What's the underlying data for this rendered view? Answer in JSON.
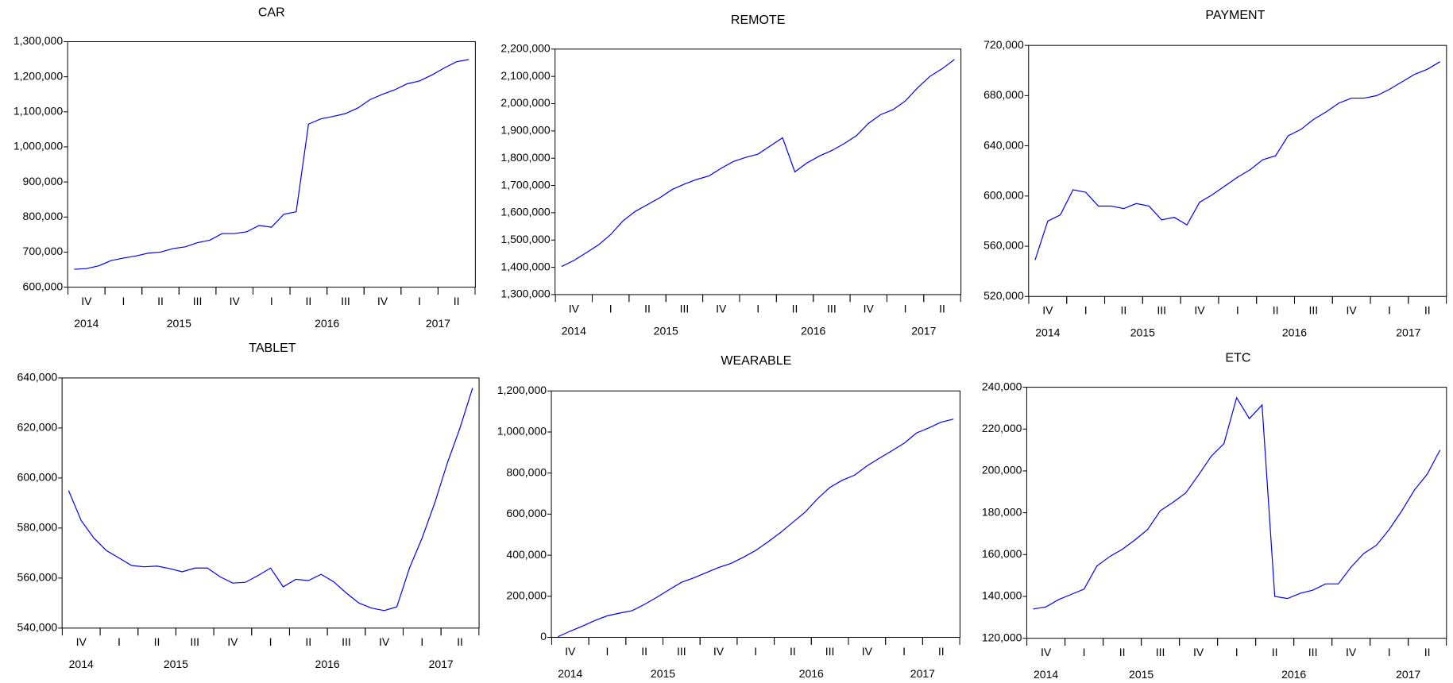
{
  "chart_data": [
    {
      "type": "line",
      "title": "CAR",
      "color": "#0000ff",
      "categories": [
        null,
        "IV",
        null,
        null,
        "I",
        null,
        null,
        "II",
        null,
        null,
        "III",
        null,
        null,
        "IV",
        null,
        null,
        "I",
        null,
        null,
        "II",
        null,
        null,
        "III",
        null,
        null,
        "IV",
        null,
        null,
        "I",
        null,
        null,
        "II",
        null
      ],
      "year_ticks": [
        {
          "value": 1,
          "label": "2014"
        },
        {
          "value": 8.5,
          "label": "2015"
        },
        {
          "value": 20.5,
          "label": "2016"
        },
        {
          "value": 29.5,
          "label": "2017"
        }
      ],
      "values": [
        651000,
        653000,
        661000,
        676000,
        683000,
        689000,
        697000,
        700000,
        710000,
        715000,
        727000,
        734000,
        753000,
        753000,
        758000,
        776000,
        771000,
        808000,
        815000,
        1065000,
        1080000,
        1087000,
        1095000,
        1111000,
        1135000,
        1150000,
        1163000,
        1180000,
        1188000,
        1205000,
        1225000,
        1243000,
        1249000
      ],
      "ylim": [
        600000,
        1300000
      ],
      "yticks": [
        {
          "value": 600000,
          "label": "600,000"
        },
        {
          "value": 700000,
          "label": "700,000"
        },
        {
          "value": 800000,
          "label": "800,000"
        },
        {
          "value": 900000,
          "label": "900,000"
        },
        {
          "value": 1000000,
          "label": "1,000,000"
        },
        {
          "value": 1100000,
          "label": "1,100,000"
        },
        {
          "value": 1200000,
          "label": "1,200,000"
        },
        {
          "value": 1300000,
          "label": "1,300,000"
        }
      ],
      "grid": false
    },
    {
      "type": "line",
      "title": "REMOTE",
      "color": "#0000ff",
      "categories": [
        null,
        "IV",
        null,
        null,
        "I",
        null,
        null,
        "II",
        null,
        null,
        "III",
        null,
        null,
        "IV",
        null,
        null,
        "I",
        null,
        null,
        "II",
        null,
        null,
        "III",
        null,
        null,
        "IV",
        null,
        null,
        "I",
        null,
        null,
        "II",
        null
      ],
      "year_ticks": [
        {
          "value": 1,
          "label": "2014"
        },
        {
          "value": 8.5,
          "label": "2015"
        },
        {
          "value": 20.5,
          "label": "2016"
        },
        {
          "value": 29.5,
          "label": "2017"
        }
      ],
      "values": [
        1403000,
        1425000,
        1453000,
        1482000,
        1520000,
        1570000,
        1605000,
        1630000,
        1655000,
        1685000,
        1705000,
        1722000,
        1735000,
        1763000,
        1788000,
        1803000,
        1815000,
        1845000,
        1875000,
        1750000,
        1783000,
        1808000,
        1828000,
        1853000,
        1882000,
        1928000,
        1960000,
        1978000,
        2010000,
        2058000,
        2100000,
        2128000,
        2162000
      ],
      "ylim": [
        1300000,
        2200000
      ],
      "yticks": [
        {
          "value": 1300000,
          "label": "1,300,000"
        },
        {
          "value": 1400000,
          "label": "1,400,000"
        },
        {
          "value": 1500000,
          "label": "1,500,000"
        },
        {
          "value": 1600000,
          "label": "1,600,000"
        },
        {
          "value": 1700000,
          "label": "1,700,000"
        },
        {
          "value": 1800000,
          "label": "1,800,000"
        },
        {
          "value": 1900000,
          "label": "1,900,000"
        },
        {
          "value": 2000000,
          "label": "2,000,000"
        },
        {
          "value": 2100000,
          "label": "2,100,000"
        },
        {
          "value": 2200000,
          "label": "2,200,000"
        }
      ],
      "grid": false
    },
    {
      "type": "line",
      "title": "PAYMENT",
      "color": "#0000ff",
      "categories": [
        null,
        "IV",
        null,
        null,
        "I",
        null,
        null,
        "II",
        null,
        null,
        "III",
        null,
        null,
        "IV",
        null,
        null,
        "I",
        null,
        null,
        "II",
        null,
        null,
        "III",
        null,
        null,
        "IV",
        null,
        null,
        "I",
        null,
        null,
        "II",
        null
      ],
      "year_ticks": [
        {
          "value": 1,
          "label": "2014"
        },
        {
          "value": 8.5,
          "label": "2015"
        },
        {
          "value": 20.5,
          "label": "2016"
        },
        {
          "value": 29.5,
          "label": "2017"
        }
      ],
      "values": [
        549000,
        580000,
        585000,
        605000,
        603000,
        592000,
        592000,
        590000,
        594000,
        592000,
        581000,
        583000,
        577000,
        595000,
        601000,
        608000,
        615000,
        621000,
        629000,
        632000,
        648000,
        653000,
        661000,
        667000,
        674000,
        678000,
        678000,
        680000,
        685000,
        691000,
        697000,
        701000,
        707000
      ],
      "ylim": [
        520000,
        720000
      ],
      "yticks": [
        {
          "value": 520000,
          "label": "520,000"
        },
        {
          "value": 560000,
          "label": "560,000"
        },
        {
          "value": 600000,
          "label": "600,000"
        },
        {
          "value": 640000,
          "label": "640,000"
        },
        {
          "value": 680000,
          "label": "680,000"
        },
        {
          "value": 720000,
          "label": "720,000"
        }
      ],
      "grid": false
    },
    {
      "type": "line",
      "title": "TABLET",
      "color": "#0000ff",
      "categories": [
        null,
        "IV",
        null,
        null,
        "I",
        null,
        null,
        "II",
        null,
        null,
        "III",
        null,
        null,
        "IV",
        null,
        null,
        "I",
        null,
        null,
        "II",
        null,
        null,
        "III",
        null,
        null,
        "IV",
        null,
        null,
        "I",
        null,
        null,
        "II",
        null
      ],
      "year_ticks": [
        {
          "value": 1,
          "label": "2014"
        },
        {
          "value": 8.5,
          "label": "2015"
        },
        {
          "value": 20.5,
          "label": "2016"
        },
        {
          "value": 29.5,
          "label": "2017"
        }
      ],
      "values": [
        595000,
        583000,
        576000,
        571000,
        568000,
        565000,
        564500,
        564800,
        563800,
        562500,
        564000,
        564000,
        560500,
        558000,
        558300,
        561000,
        564000,
        556500,
        559500,
        559000,
        561500,
        558500,
        554000,
        550000,
        548000,
        547000,
        548500,
        564000,
        576000,
        590000,
        606000,
        620000,
        636000
      ],
      "ylim": [
        540000,
        640000
      ],
      "yticks": [
        {
          "value": 540000,
          "label": "540,000"
        },
        {
          "value": 560000,
          "label": "560,000"
        },
        {
          "value": 580000,
          "label": "580,000"
        },
        {
          "value": 600000,
          "label": "600,000"
        },
        {
          "value": 620000,
          "label": "620,000"
        },
        {
          "value": 640000,
          "label": "640,000"
        }
      ],
      "grid": false
    },
    {
      "type": "line",
      "title": "WEARABLE",
      "color": "#0000ff",
      "categories": [
        null,
        "IV",
        null,
        null,
        "I",
        null,
        null,
        "II",
        null,
        null,
        "III",
        null,
        null,
        "IV",
        null,
        null,
        "I",
        null,
        null,
        "II",
        null,
        null,
        "III",
        null,
        null,
        "IV",
        null,
        null,
        "I",
        null,
        null,
        "II",
        null
      ],
      "year_ticks": [
        {
          "value": 1,
          "label": "2014"
        },
        {
          "value": 8.5,
          "label": "2015"
        },
        {
          "value": 20.5,
          "label": "2016"
        },
        {
          "value": 29.5,
          "label": "2017"
        }
      ],
      "values": [
        3000,
        30000,
        55000,
        82000,
        105000,
        118000,
        130000,
        160000,
        195000,
        232000,
        268000,
        290000,
        315000,
        340000,
        360000,
        390000,
        423000,
        465000,
        510000,
        560000,
        610000,
        675000,
        730000,
        765000,
        790000,
        835000,
        872000,
        908000,
        945000,
        995000,
        1020000,
        1048000,
        1063000
      ],
      "ylim": [
        0,
        1200000
      ],
      "yticks": [
        0,
        {
          "value": 200000,
          "label": "200,000"
        },
        {
          "value": 400000,
          "label": "400,000"
        },
        {
          "value": 600000,
          "label": "600,000"
        },
        {
          "value": 800000,
          "label": "800,000"
        },
        {
          "value": 1000000,
          "label": "1,000,000"
        },
        {
          "value": 1200000,
          "label": "1,200,000"
        }
      ],
      "grid": false
    },
    {
      "type": "line",
      "title": "ETC",
      "color": "#0000ff",
      "categories": [
        null,
        "IV",
        null,
        null,
        "I",
        null,
        null,
        "II",
        null,
        null,
        "III",
        null,
        null,
        "IV",
        null,
        null,
        "I",
        null,
        null,
        "II",
        null,
        null,
        "III",
        null,
        null,
        "IV",
        null,
        null,
        "I",
        null,
        null,
        "II",
        null
      ],
      "year_ticks": [
        {
          "value": 1,
          "label": "2014"
        },
        {
          "value": 8.5,
          "label": "2015"
        },
        {
          "value": 20.5,
          "label": "2016"
        },
        {
          "value": 29.5,
          "label": "2017"
        }
      ],
      "values": [
        134000,
        135000,
        138500,
        141000,
        143500,
        154500,
        159000,
        162500,
        167000,
        172000,
        181000,
        185000,
        189500,
        198000,
        207000,
        213000,
        235000,
        225000,
        231500,
        140000,
        139000,
        141500,
        143000,
        146000,
        146000,
        154000,
        160500,
        164500,
        172000,
        181000,
        191000,
        198500,
        210000
      ],
      "ylim": [
        120000,
        240000
      ],
      "yticks": [
        {
          "value": 120000,
          "label": "120,000"
        },
        {
          "value": 140000,
          "label": "140,000"
        },
        {
          "value": 160000,
          "label": "160,000"
        },
        {
          "value": 180000,
          "label": "180,000"
        },
        {
          "value": 200000,
          "label": "200,000"
        },
        {
          "value": 220000,
          "label": "220,000"
        },
        {
          "value": 240000,
          "label": "240,000"
        }
      ],
      "grid": false
    }
  ]
}
